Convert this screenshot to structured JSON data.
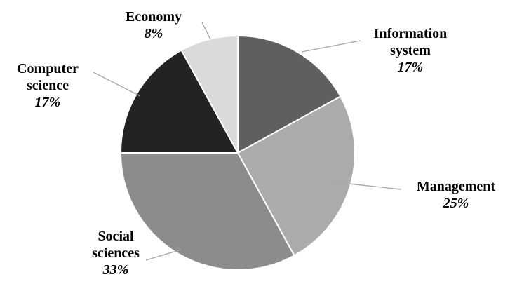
{
  "chart_data": {
    "type": "pie",
    "title": "",
    "legend": "none",
    "slices": [
      {
        "label_lines": [
          "Information",
          "system"
        ],
        "pct_text": "17%",
        "value": 17,
        "color": "#5f5f5f"
      },
      {
        "label_lines": [
          "Management"
        ],
        "pct_text": "25%",
        "value": 25,
        "color": "#ababab"
      },
      {
        "label_lines": [
          "Social",
          "sciences"
        ],
        "pct_text": "33%",
        "value": 33,
        "color": "#8c8c8c"
      },
      {
        "label_lines": [
          "Computer",
          "science"
        ],
        "pct_text": "17%",
        "value": 17,
        "color": "#232323"
      },
      {
        "label_lines": [
          "Economy"
        ],
        "pct_text": "8%",
        "value": 8,
        "color": "#dadada"
      }
    ]
  }
}
